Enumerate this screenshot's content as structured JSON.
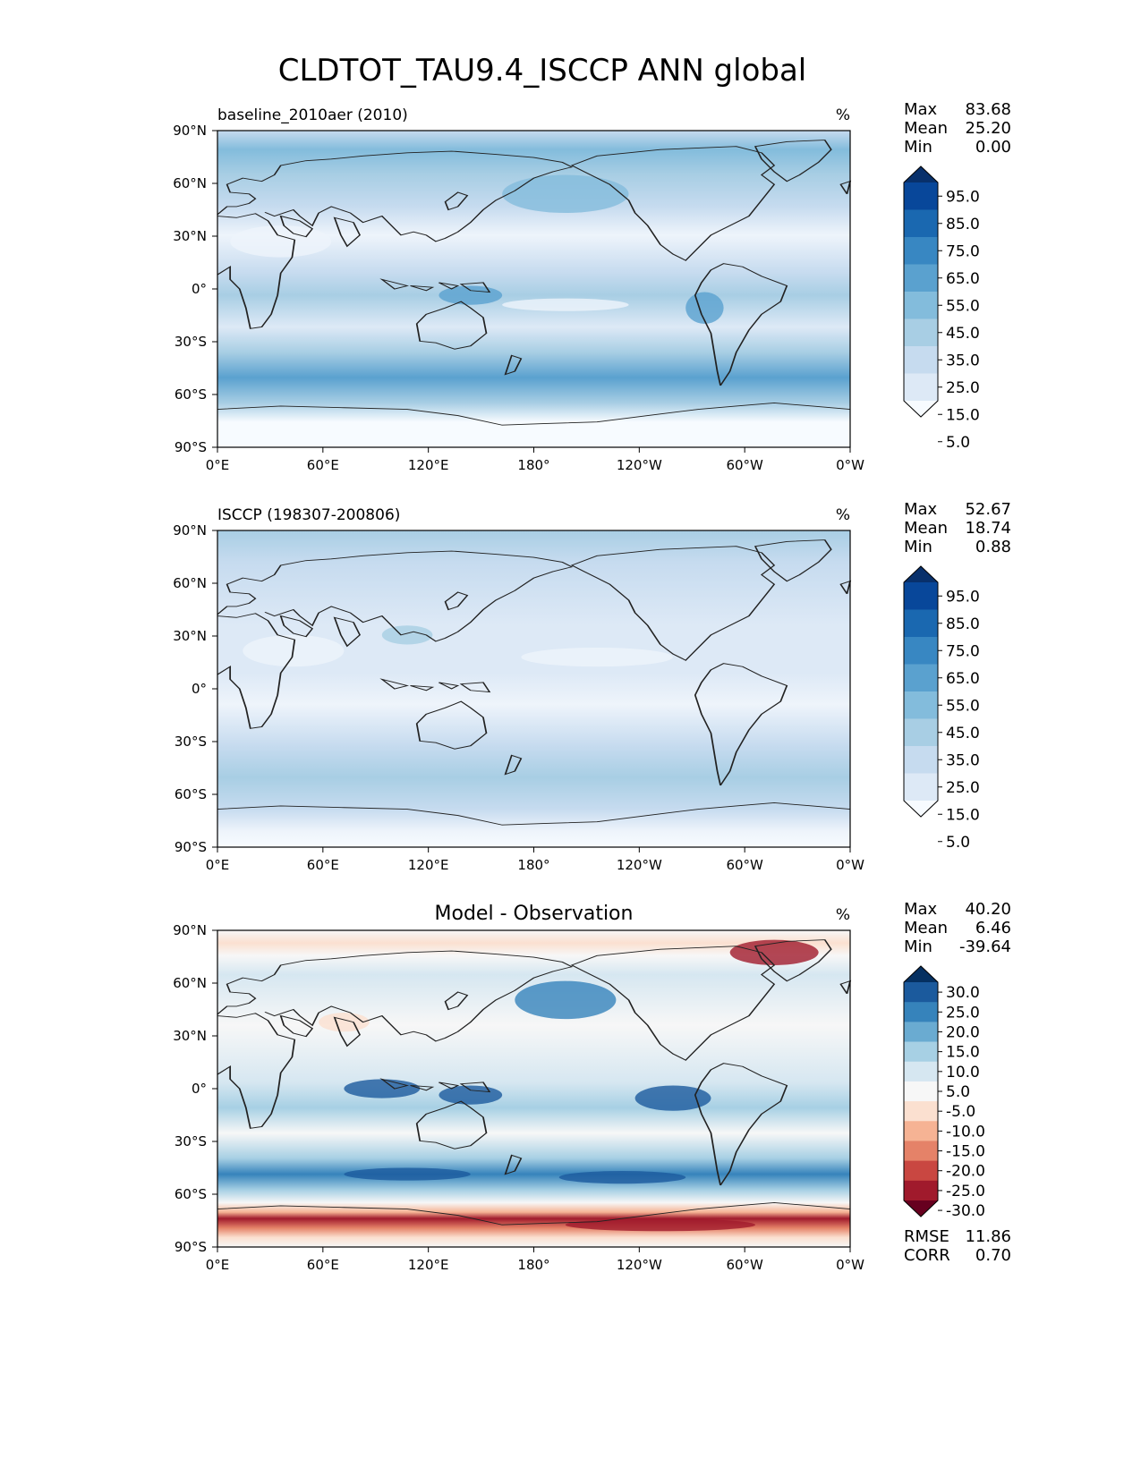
{
  "title": "CLDTOT_TAU9.4_ISCCP ANN global",
  "panels": [
    {
      "left_title": "baseline_2010aer (2010)",
      "center_title": "",
      "units": "%",
      "stats": [
        {
          "label": "Max",
          "value": "83.68"
        },
        {
          "label": "Mean",
          "value": "25.20"
        },
        {
          "label": "Min",
          "value": "0.00"
        }
      ],
      "colorbar": {
        "labels": [
          "95.0",
          "85.0",
          "75.0",
          "65.0",
          "55.0",
          "45.0",
          "35.0",
          "25.0",
          "15.0",
          "5.0"
        ],
        "colors": [
          "#08306b",
          "#08479a",
          "#1a68b0",
          "#3887c2",
          "#5aa1cf",
          "#83bcdc",
          "#a8cee4",
          "#c6dbef",
          "#dde9f6",
          "#f7fbff"
        ]
      }
    },
    {
      "left_title": "ISCCP (198307-200806)",
      "center_title": "",
      "units": "%",
      "stats": [
        {
          "label": "Max",
          "value": "52.67"
        },
        {
          "label": "Mean",
          "value": "18.74"
        },
        {
          "label": "Min",
          "value": "0.88"
        }
      ],
      "colorbar": {
        "labels": [
          "95.0",
          "85.0",
          "75.0",
          "65.0",
          "55.0",
          "45.0",
          "35.0",
          "25.0",
          "15.0",
          "5.0"
        ],
        "colors": [
          "#08306b",
          "#08479a",
          "#1a68b0",
          "#3887c2",
          "#5aa1cf",
          "#83bcdc",
          "#a8cee4",
          "#c6dbef",
          "#dde9f6",
          "#f7fbff"
        ]
      }
    },
    {
      "left_title": "",
      "center_title": "Model - Observation",
      "units": "%",
      "stats": [
        {
          "label": "Max",
          "value": "40.20"
        },
        {
          "label": "Mean",
          "value": "6.46"
        },
        {
          "label": "Min",
          "value": "-39.64"
        }
      ],
      "extra_stats": [
        {
          "label": "RMSE",
          "value": "11.86"
        },
        {
          "label": "CORR",
          "value": "0.70"
        }
      ],
      "colorbar": {
        "labels": [
          "30.0",
          "25.0",
          "20.0",
          "15.0",
          "10.0",
          "5.0",
          "-5.0",
          "-10.0",
          "-15.0",
          "-20.0",
          "-25.0",
          "-30.0"
        ],
        "colors": [
          "#053061",
          "#1b5a9d",
          "#3683bb",
          "#6aabd1",
          "#a7d0e4",
          "#d6e7f1",
          "#f7f7f7",
          "#fbe0d0",
          "#f6b394",
          "#e58268",
          "#c94741",
          "#a01a2c",
          "#67001f"
        ]
      }
    }
  ],
  "axes": {
    "lon_ticks": [
      "0°E",
      "60°E",
      "120°E",
      "180°",
      "120°W",
      "60°W",
      "0°W"
    ],
    "lat_ticks": [
      "90°N",
      "60°N",
      "30°N",
      "0°",
      "30°S",
      "60°S",
      "90°S"
    ]
  }
}
